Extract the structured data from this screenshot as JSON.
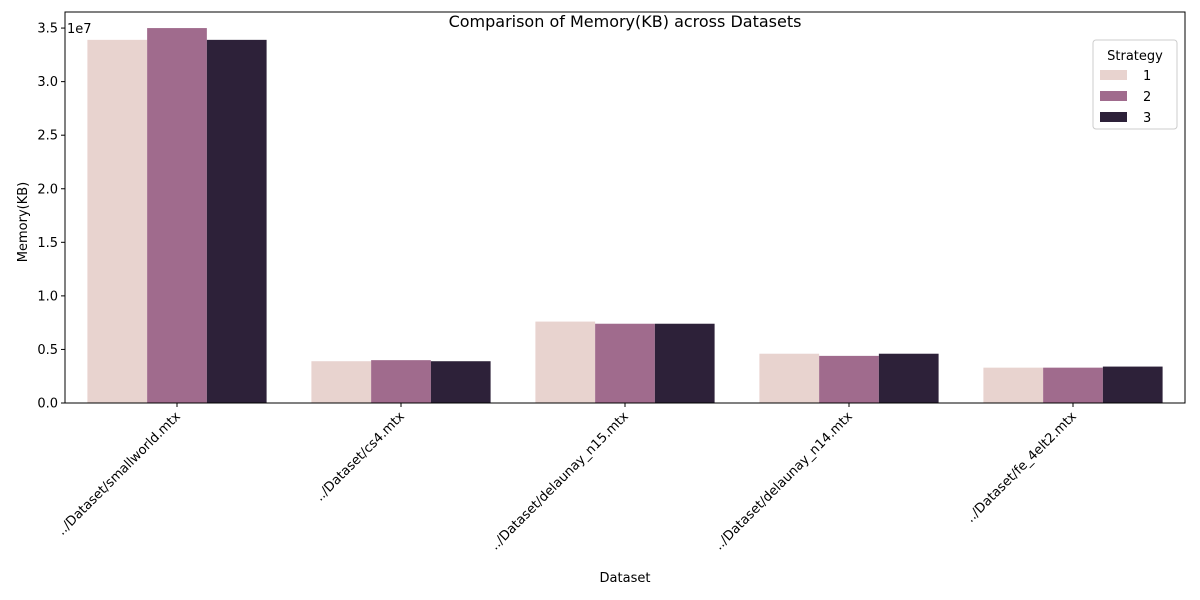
{
  "chart_data": {
    "type": "bar",
    "title": "Comparison of Memory(KB) across Datasets",
    "xlabel": "Dataset",
    "ylabel": "Memory(KB)",
    "y_offset_label": "1e7",
    "categories": [
      "../Dataset/smallworld.mtx",
      "../Dataset/cs4.mtx",
      "../Dataset/delaunay_n15.mtx",
      "../Dataset/delaunay_n14.mtx",
      "../Dataset/fe_4elt2.mtx"
    ],
    "series": [
      {
        "name": "1",
        "color": "#e8d3cf",
        "values": [
          33900000,
          3900000,
          7600000,
          4600000,
          3300000
        ]
      },
      {
        "name": "2",
        "color": "#a06b8d",
        "values": [
          35000000,
          4000000,
          7400000,
          4400000,
          3300000
        ]
      },
      {
        "name": "3",
        "color": "#2d2139",
        "values": [
          33900000,
          3900000,
          7400000,
          4600000,
          3400000
        ]
      }
    ],
    "ylim": [
      0,
      36500000
    ],
    "yticks": [
      0,
      5000000,
      10000000,
      15000000,
      20000000,
      25000000,
      30000000,
      35000000
    ],
    "ytick_labels": [
      "0.0",
      "0.5",
      "1.0",
      "1.5",
      "2.0",
      "2.5",
      "3.0",
      "3.5"
    ],
    "legend": {
      "title": "Strategy",
      "placement": "top-right"
    },
    "grid": false
  }
}
